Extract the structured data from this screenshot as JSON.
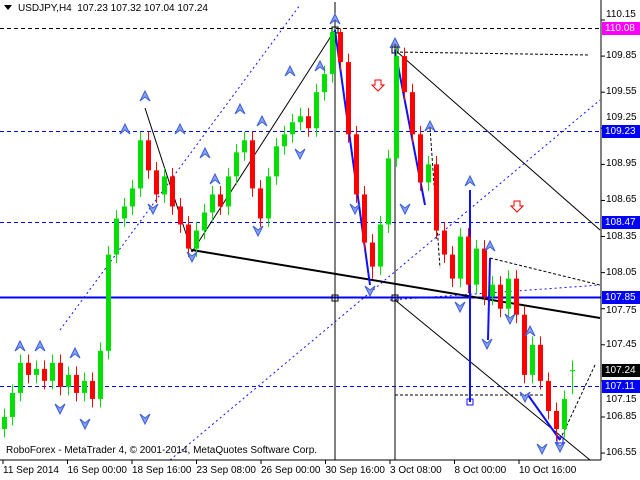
{
  "header": {
    "symbol": "USDJPY,H4",
    "ohlc": "107.23 107.32 107.04 107.24"
  },
  "copyright": "RoboForex - MetaTrader 4, © 2001-2014, MetaQuotes Software Corp.",
  "colors": {
    "bull": "#00e000",
    "bear": "#ff0000",
    "level": "#0000ff",
    "top_level": "#ff00ff",
    "current": "#000000",
    "fractal": "#3a5fd8"
  },
  "chart_data": {
    "type": "candlestick",
    "timeframe": "H4",
    "ylim": [
      106.5,
      110.2
    ],
    "y_ticks": [
      "110.15",
      "109.85",
      "109.55",
      "109.25",
      "108.95",
      "108.65",
      "108.35",
      "108.05",
      "107.75",
      "107.45",
      "107.15",
      "106.85",
      "106.55"
    ],
    "x_ticks": [
      "11 Sep 2014",
      "16 Sep 00:00",
      "18 Sep 16:00",
      "23 Sep 08:00",
      "26 Sep 00:00",
      "30 Sep 16:00",
      "3 Oct 08:00",
      "8 Oct 00:00",
      "10 Oct 16:00"
    ],
    "levels": [
      {
        "price": 110.08,
        "label": "110.08",
        "color": "#ff00ff",
        "style": "dashed"
      },
      {
        "price": 109.23,
        "label": "109.23",
        "color": "#0000ff",
        "style": "dashed"
      },
      {
        "price": 108.47,
        "label": "108.47",
        "color": "#0000ff",
        "style": "dashed"
      },
      {
        "price": 107.85,
        "label": "107.85",
        "color": "#0000ff",
        "style": "solid"
      },
      {
        "price": 107.11,
        "label": "107.11",
        "color": "#0000ff",
        "style": "dashed"
      }
    ],
    "current_price": {
      "price": 107.24,
      "label": "107.24"
    },
    "candles_ohlc": [
      [
        106.75,
        106.92,
        106.68,
        106.85
      ],
      [
        106.85,
        107.12,
        106.78,
        107.05
      ],
      [
        107.05,
        107.37,
        106.98,
        107.3
      ],
      [
        107.3,
        107.37,
        107.13,
        107.2
      ],
      [
        107.2,
        107.32,
        107.13,
        107.25
      ],
      [
        107.25,
        107.32,
        107.08,
        107.15
      ],
      [
        107.15,
        107.37,
        107.08,
        107.3
      ],
      [
        107.3,
        107.37,
        107.03,
        107.1
      ],
      [
        107.1,
        107.27,
        107.03,
        107.2
      ],
      [
        107.2,
        107.27,
        106.98,
        107.05
      ],
      [
        107.05,
        107.22,
        106.98,
        107.15
      ],
      [
        107.15,
        107.22,
        106.93,
        107.0
      ],
      [
        107.0,
        107.47,
        106.93,
        107.4
      ],
      [
        107.4,
        108.27,
        107.33,
        108.2
      ],
      [
        108.2,
        108.57,
        108.13,
        108.5
      ],
      [
        108.5,
        108.67,
        108.43,
        108.6
      ],
      [
        108.6,
        108.82,
        108.53,
        108.75
      ],
      [
        108.75,
        109.22,
        108.68,
        109.15
      ],
      [
        109.15,
        109.22,
        108.83,
        108.9
      ],
      [
        108.9,
        108.97,
        108.63,
        108.7
      ],
      [
        108.7,
        108.92,
        108.63,
        108.85
      ],
      [
        108.85,
        108.92,
        108.53,
        108.6
      ],
      [
        108.6,
        108.67,
        108.38,
        108.45
      ],
      [
        108.45,
        108.52,
        108.18,
        108.25
      ],
      [
        108.25,
        108.47,
        108.18,
        108.4
      ],
      [
        108.4,
        108.62,
        108.33,
        108.55
      ],
      [
        108.55,
        108.77,
        108.48,
        108.7
      ],
      [
        108.7,
        108.77,
        108.53,
        108.6
      ],
      [
        108.6,
        108.92,
        108.53,
        108.85
      ],
      [
        108.85,
        109.12,
        108.78,
        109.05
      ],
      [
        109.05,
        109.22,
        108.98,
        109.15
      ],
      [
        109.15,
        109.22,
        108.68,
        108.75
      ],
      [
        108.75,
        108.82,
        108.43,
        108.5
      ],
      [
        108.5,
        108.92,
        108.43,
        108.85
      ],
      [
        108.85,
        109.17,
        108.78,
        109.1
      ],
      [
        109.1,
        109.27,
        109.03,
        109.2
      ],
      [
        109.2,
        109.37,
        109.13,
        109.3
      ],
      [
        109.3,
        109.42,
        109.23,
        109.35
      ],
      [
        109.35,
        109.42,
        109.18,
        109.25
      ],
      [
        109.25,
        109.62,
        109.18,
        109.55
      ],
      [
        109.55,
        109.77,
        109.48,
        109.7
      ],
      [
        109.7,
        110.08,
        109.63,
        110.05
      ],
      [
        110.05,
        110.08,
        109.73,
        109.8
      ],
      [
        109.8,
        109.87,
        109.13,
        109.2
      ],
      [
        109.2,
        109.27,
        108.63,
        108.7
      ],
      [
        108.7,
        108.77,
        108.23,
        108.3
      ],
      [
        108.3,
        108.37,
        108.0,
        108.1
      ],
      [
        108.1,
        108.52,
        108.03,
        108.45
      ],
      [
        108.45,
        109.07,
        108.38,
        109.0
      ],
      [
        109.0,
        109.92,
        108.93,
        109.85
      ],
      [
        109.85,
        109.92,
        109.48,
        109.55
      ],
      [
        109.55,
        109.62,
        109.13,
        109.2
      ],
      [
        109.2,
        109.27,
        108.73,
        108.8
      ],
      [
        108.8,
        109.02,
        108.73,
        108.95
      ],
      [
        108.95,
        109.02,
        108.33,
        108.4
      ],
      [
        108.4,
        108.47,
        108.13,
        108.2
      ],
      [
        108.2,
        108.27,
        107.93,
        108.0
      ],
      [
        108.0,
        108.42,
        107.93,
        108.35
      ],
      [
        108.35,
        108.42,
        107.88,
        107.95
      ],
      [
        107.95,
        108.32,
        107.88,
        108.25
      ],
      [
        108.25,
        108.32,
        107.78,
        107.85
      ],
      [
        107.85,
        108.02,
        107.78,
        107.95
      ],
      [
        107.95,
        108.02,
        107.68,
        107.75
      ],
      [
        107.75,
        108.07,
        107.68,
        108.0
      ],
      [
        108.0,
        108.07,
        107.63,
        107.7
      ],
      [
        107.7,
        107.77,
        107.13,
        107.2
      ],
      [
        107.2,
        107.52,
        107.13,
        107.45
      ],
      [
        107.45,
        107.52,
        107.08,
        107.15
      ],
      [
        107.15,
        107.22,
        106.83,
        106.9
      ],
      [
        106.9,
        106.97,
        106.65,
        106.75
      ],
      [
        106.75,
        107.07,
        106.68,
        107.0
      ],
      [
        107.23,
        107.32,
        107.04,
        107.24
      ]
    ]
  }
}
